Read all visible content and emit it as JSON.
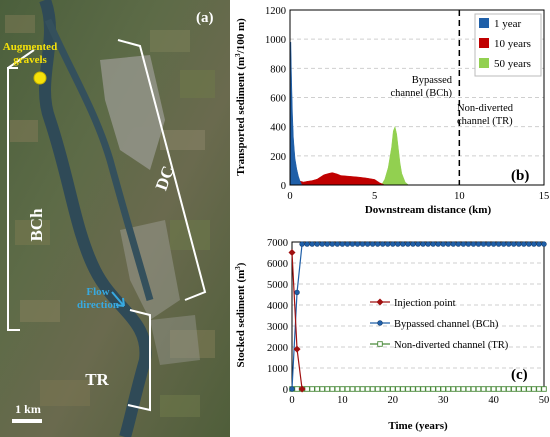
{
  "map": {
    "panel_label": "(a)",
    "augmented_label_line1": "Augmented",
    "augmented_label_line2": "gravels",
    "flow_label_line1": "Flow",
    "flow_label_line2": "direction",
    "label_bch": "BCh",
    "label_dc": "DC",
    "label_tr": "TR",
    "scale_label": "1 km",
    "colors": {
      "augmented_dot": "#f5e10a",
      "flow_text": "#38a9e0",
      "bracket": "#ffffff"
    }
  },
  "chart_data": [
    {
      "type": "area",
      "panel_label": "(b)",
      "xlabel": "Downstream distance (km)",
      "ylabel_line1": "Transported sediment (m",
      "ylabel_line2": "/100 m)",
      "xlim": [
        0,
        15
      ],
      "ylim": [
        0,
        1200
      ],
      "xticks": [
        0,
        5,
        10,
        15
      ],
      "yticks": [
        0,
        200,
        400,
        600,
        800,
        1000,
        1200
      ],
      "grid": true,
      "legend_position": "top-right",
      "divider_x": 10,
      "annotation_left_line1": "Bypassed",
      "annotation_left_line2": "channel (BCh)",
      "annotation_right_line1": "Non-diverted",
      "annotation_right_line2": "channel (TR)",
      "series": [
        {
          "name": "50 years",
          "color": "#92d050",
          "x": [
            0,
            0.1,
            0.2,
            0.3,
            0.5,
            5.4,
            5.6,
            5.8,
            6.0,
            6.1,
            6.2,
            6.3,
            6.4,
            6.5,
            6.6,
            6.8,
            7.0
          ],
          "y": [
            0,
            90,
            60,
            20,
            0,
            0,
            40,
            120,
            260,
            370,
            400,
            350,
            250,
            150,
            80,
            20,
            0
          ]
        },
        {
          "name": "10 years",
          "color": "#c00000",
          "x": [
            0,
            0.1,
            0.3,
            0.5,
            0.8,
            1.0,
            1.3,
            1.6,
            2.0,
            2.3,
            2.5,
            2.8,
            3.0,
            3.5,
            4.0,
            4.5,
            5.0,
            5.3,
            5.6
          ],
          "y": [
            0,
            80,
            60,
            30,
            20,
            25,
            30,
            40,
            70,
            80,
            85,
            75,
            65,
            60,
            55,
            48,
            38,
            15,
            0
          ]
        },
        {
          "name": "1 year",
          "color": "#1f5fa8",
          "x": [
            0,
            0.05,
            0.1,
            0.15,
            0.2,
            0.25,
            0.3,
            0.4,
            0.5,
            0.6,
            0.7
          ],
          "y": [
            0,
            980,
            700,
            480,
            330,
            250,
            180,
            110,
            60,
            25,
            0
          ]
        }
      ]
    },
    {
      "type": "line",
      "panel_label": "(c)",
      "xlabel": "Time (years)",
      "ylabel_line1": "Stocked sediment (m",
      "xlim": [
        0,
        50
      ],
      "ylim": [
        0,
        7000
      ],
      "xticks": [
        0,
        10,
        20,
        30,
        40,
        50
      ],
      "yticks": [
        0,
        1000,
        2000,
        3000,
        4000,
        5000,
        6000,
        7000
      ],
      "grid": true,
      "legend_position": "center-right",
      "series": [
        {
          "name": "Injection point",
          "color": "#a01010",
          "marker": "diamond",
          "x": [
            0,
            1,
            2
          ],
          "y": [
            6500,
            1900,
            0
          ]
        },
        {
          "name": "Bypassed channel (BCh)",
          "color": "#1f5fa8",
          "marker": "circle",
          "x": [
            0,
            1,
            2,
            3,
            4,
            5,
            6,
            7,
            8,
            9,
            10,
            11,
            12,
            13,
            14,
            15,
            16,
            17,
            18,
            19,
            20,
            21,
            22,
            23,
            24,
            25,
            26,
            27,
            28,
            29,
            30,
            31,
            32,
            33,
            34,
            35,
            36,
            37,
            38,
            39,
            40,
            41,
            42,
            43,
            44,
            45,
            46,
            47,
            48,
            49,
            50
          ],
          "y": [
            0,
            4600,
            6900,
            6900,
            6900,
            6900,
            6900,
            6900,
            6900,
            6900,
            6900,
            6900,
            6900,
            6900,
            6900,
            6900,
            6900,
            6900,
            6900,
            6900,
            6900,
            6900,
            6900,
            6900,
            6900,
            6900,
            6900,
            6900,
            6900,
            6900,
            6900,
            6900,
            6900,
            6900,
            6900,
            6900,
            6900,
            6900,
            6900,
            6900,
            6900,
            6900,
            6900,
            6900,
            6900,
            6900,
            6900,
            6900,
            6900,
            6900,
            6900
          ]
        },
        {
          "name": "Non-diverted channel (TR)",
          "color": "#4a8a3a",
          "marker": "square",
          "x": [
            0,
            1,
            2,
            3,
            4,
            5,
            6,
            7,
            8,
            9,
            10,
            11,
            12,
            13,
            14,
            15,
            16,
            17,
            18,
            19,
            20,
            21,
            22,
            23,
            24,
            25,
            26,
            27,
            28,
            29,
            30,
            31,
            32,
            33,
            34,
            35,
            36,
            37,
            38,
            39,
            40,
            41,
            42,
            43,
            44,
            45,
            46,
            47,
            48,
            49,
            50
          ],
          "y": [
            0,
            0,
            0,
            0,
            0,
            0,
            0,
            0,
            0,
            0,
            0,
            0,
            0,
            0,
            0,
            0,
            0,
            0,
            0,
            0,
            0,
            0,
            0,
            0,
            0,
            0,
            0,
            0,
            0,
            0,
            0,
            0,
            0,
            0,
            0,
            0,
            0,
            0,
            0,
            0,
            0,
            0,
            0,
            0,
            0,
            0,
            0,
            0,
            0,
            0,
            0
          ]
        }
      ]
    }
  ]
}
